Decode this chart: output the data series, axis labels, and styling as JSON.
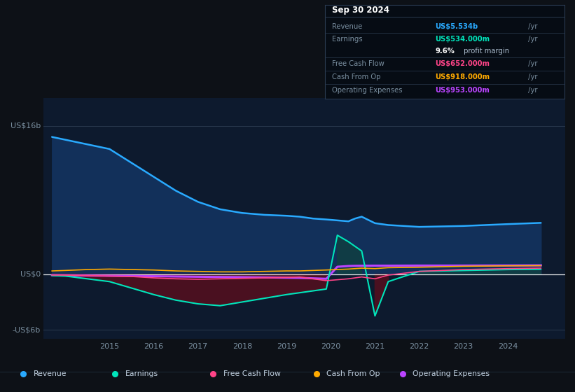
{
  "bg_color": "#0d1117",
  "plot_bg_color": "#0d1a2e",
  "grid_color": "#2a3a50",
  "text_color": "#7a8fa0",
  "ylim": [
    -7,
    19
  ],
  "xticks": [
    2015,
    2016,
    2017,
    2018,
    2019,
    2020,
    2021,
    2022,
    2023,
    2024
  ],
  "xlim": [
    2013.5,
    2025.3
  ],
  "colors": {
    "revenue": "#29aaff",
    "earnings": "#00e5bb",
    "free_cash_flow": "#ff4488",
    "cash_from_op": "#ffaa00",
    "operating_expenses": "#bb44ff"
  },
  "fill_revenue": "#12305a",
  "fill_earnings_neg": "#4a1020",
  "fill_earnings_pos": "#104040",
  "legend": [
    {
      "label": "Revenue",
      "color": "#29aaff"
    },
    {
      "label": "Earnings",
      "color": "#00e5bb"
    },
    {
      "label": "Free Cash Flow",
      "color": "#ff4488"
    },
    {
      "label": "Cash From Op",
      "color": "#ffaa00"
    },
    {
      "label": "Operating Expenses",
      "color": "#bb44ff"
    }
  ],
  "years": [
    2013.7,
    2014.0,
    2014.5,
    2015.0,
    2015.5,
    2016.0,
    2016.5,
    2017.0,
    2017.5,
    2018.0,
    2018.5,
    2019.0,
    2019.3,
    2019.6,
    2019.9,
    2020.15,
    2020.4,
    2020.55,
    2020.7,
    2021.0,
    2021.3,
    2022.0,
    2023.0,
    2024.0,
    2024.75
  ],
  "revenue": [
    14.8,
    14.5,
    14.0,
    13.5,
    12.0,
    10.5,
    9.0,
    7.8,
    7.0,
    6.6,
    6.4,
    6.3,
    6.2,
    6.0,
    5.9,
    5.8,
    5.7,
    6.0,
    6.2,
    5.5,
    5.3,
    5.1,
    5.2,
    5.4,
    5.534
  ],
  "earnings": [
    -0.15,
    -0.2,
    -0.5,
    -0.8,
    -1.5,
    -2.2,
    -2.8,
    -3.2,
    -3.4,
    -3.0,
    -2.6,
    -2.2,
    -2.0,
    -1.8,
    -1.6,
    4.2,
    3.5,
    3.0,
    2.5,
    -4.5,
    -0.8,
    0.3,
    0.4,
    0.5,
    0.534
  ],
  "free_cash_flow": [
    -0.1,
    -0.1,
    -0.15,
    -0.2,
    -0.25,
    -0.4,
    -0.5,
    -0.55,
    -0.5,
    -0.45,
    -0.4,
    -0.35,
    -0.3,
    -0.5,
    -0.7,
    -0.6,
    -0.5,
    -0.4,
    -0.3,
    -0.5,
    -0.1,
    0.3,
    0.5,
    0.6,
    0.652
  ],
  "cash_from_op": [
    0.35,
    0.4,
    0.5,
    0.55,
    0.5,
    0.45,
    0.35,
    0.3,
    0.25,
    0.25,
    0.3,
    0.35,
    0.35,
    0.4,
    0.45,
    0.5,
    0.55,
    0.6,
    0.65,
    0.6,
    0.7,
    0.75,
    0.85,
    0.9,
    0.918
  ],
  "operating_expenses": [
    -0.1,
    -0.12,
    -0.15,
    -0.18,
    -0.2,
    -0.22,
    -0.25,
    -0.28,
    -0.3,
    -0.32,
    -0.35,
    -0.38,
    -0.4,
    -0.45,
    -0.5,
    0.8,
    0.88,
    0.9,
    0.91,
    0.92,
    0.92,
    0.93,
    0.93,
    0.94,
    0.953
  ]
}
